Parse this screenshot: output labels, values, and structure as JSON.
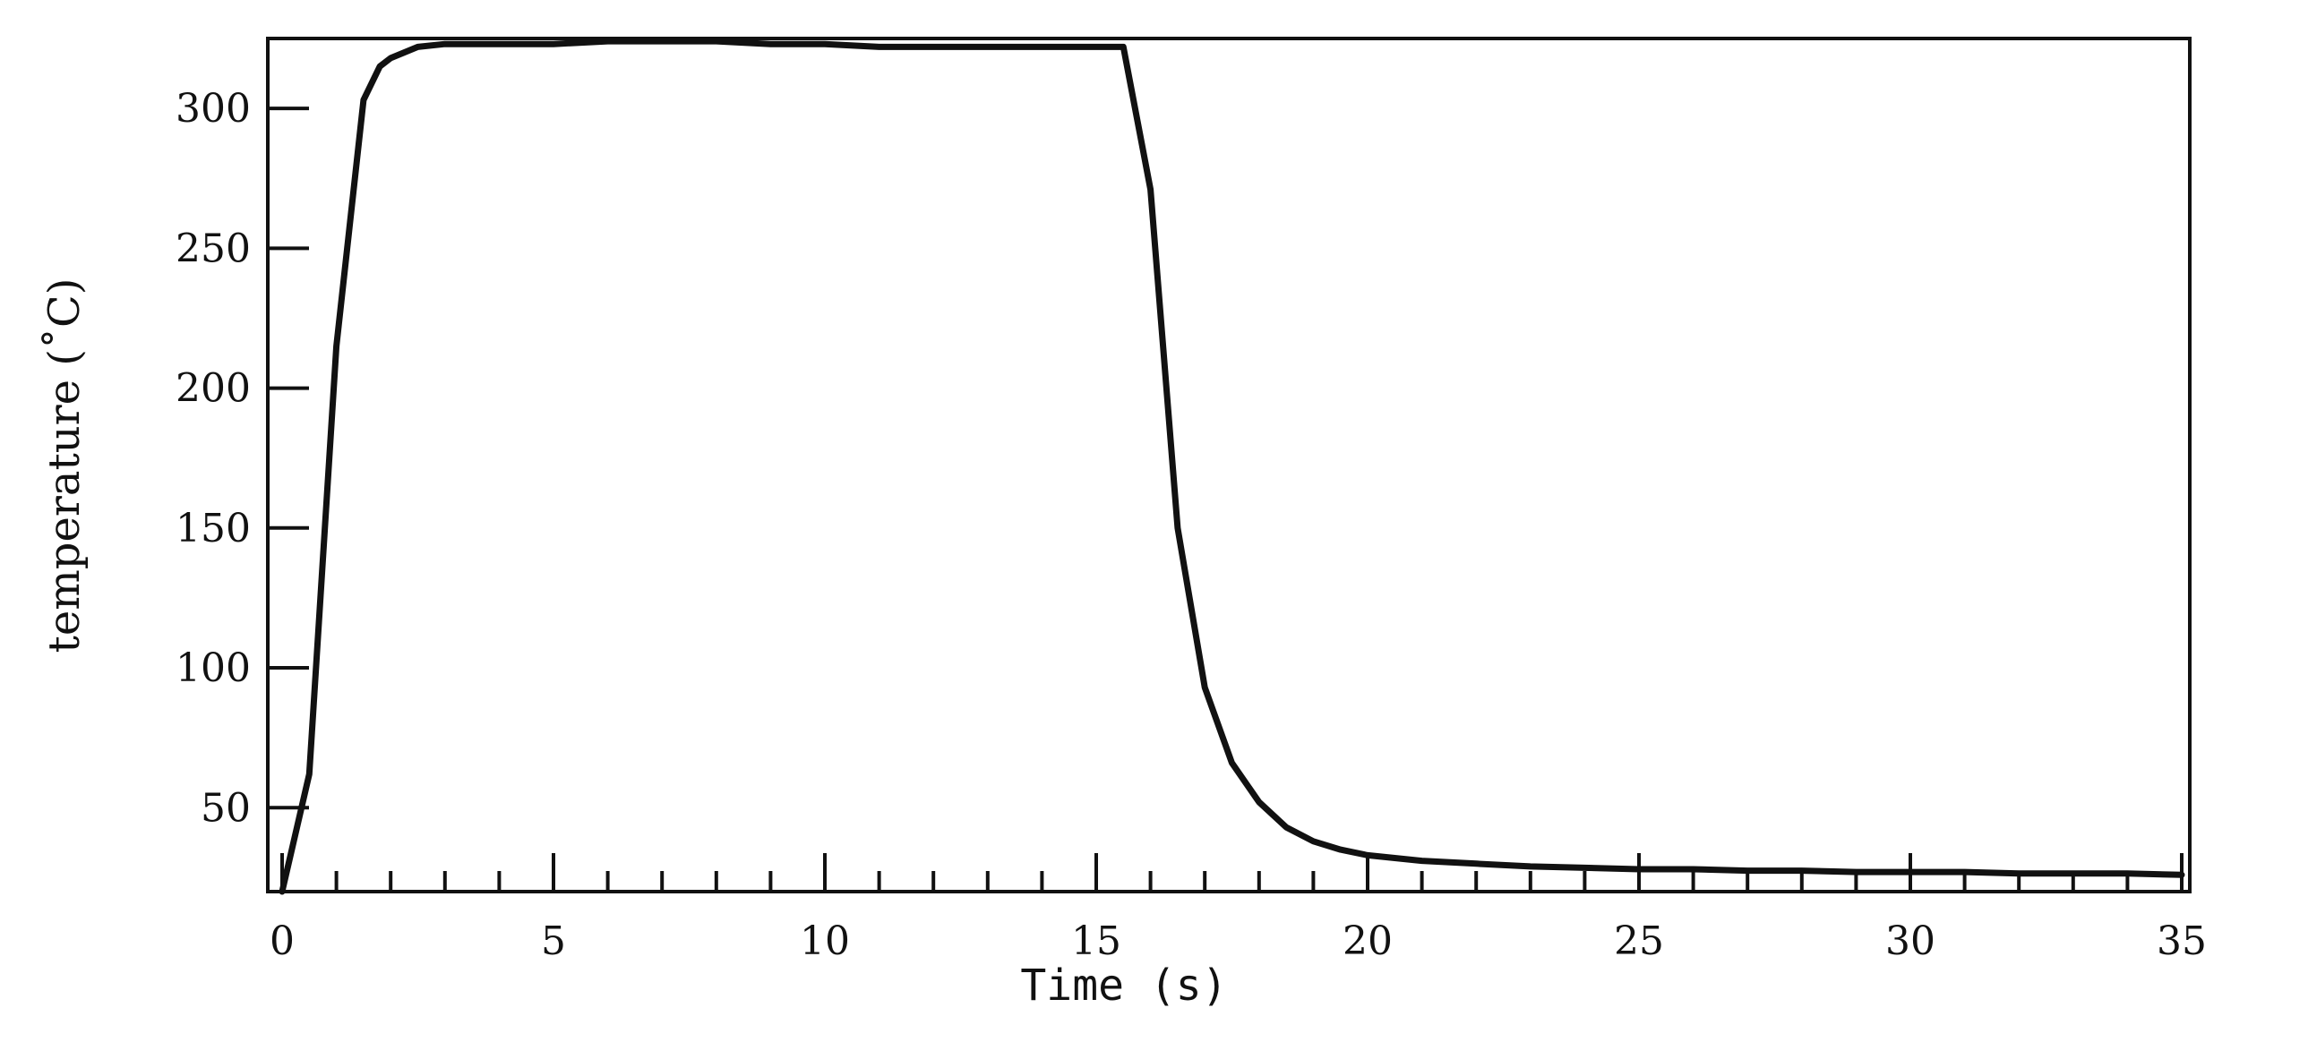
{
  "chart_data": {
    "type": "line",
    "xlabel": "Time (s)",
    "ylabel": "temperature (˚C)",
    "xlim": [
      0,
      35
    ],
    "ylim": [
      20,
      325
    ],
    "xticks": [
      0,
      5,
      10,
      15,
      20,
      25,
      30,
      35
    ],
    "xtick_labels": [
      "0",
      "5",
      "10",
      "15",
      "20",
      "25",
      "30",
      "35"
    ],
    "yticks": [
      50,
      100,
      150,
      200,
      250,
      300
    ],
    "ytick_labels": [
      "50",
      "100",
      "150",
      "200",
      "250",
      "300"
    ],
    "grid": false,
    "legend": "none",
    "line_color": "#111111",
    "series": [
      {
        "x": [
          0,
          0.5,
          1.0,
          1.5,
          1.8,
          2.0,
          2.5,
          3.0,
          4.0,
          5.0,
          6.0,
          7.0,
          8.0,
          9.0,
          10.0,
          11.0,
          12.0,
          13.0,
          14.0,
          15.0,
          15.5,
          16.0,
          16.5,
          17.0,
          17.5,
          18.0,
          18.5,
          19.0,
          19.5,
          20.0,
          21.0,
          22.0,
          23.0,
          24.0,
          25.0,
          26.0,
          27.0,
          28.0,
          29.0,
          30.0,
          31.0,
          32.0,
          33.0,
          34.0,
          35.0
        ],
        "y": [
          20,
          62,
          215,
          303,
          315,
          318,
          322,
          323,
          323,
          323,
          324,
          324,
          324,
          323,
          323,
          322,
          322,
          322,
          322,
          322,
          322,
          271,
          150,
          93,
          66,
          52,
          43,
          38,
          35,
          33,
          31,
          30,
          29,
          28.5,
          28,
          28,
          27.5,
          27.5,
          27,
          27,
          27,
          26.5,
          26.5,
          26.5,
          26
        ]
      }
    ]
  }
}
